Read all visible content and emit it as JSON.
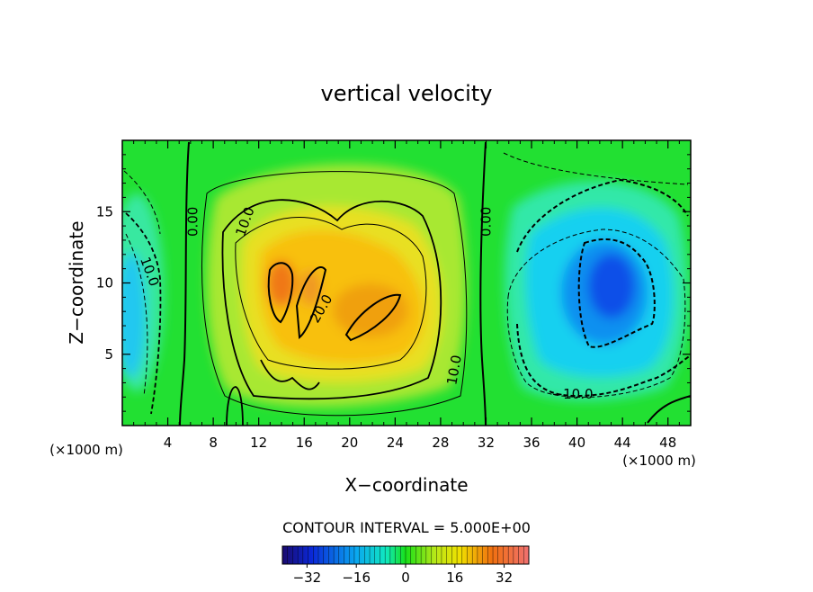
{
  "chart_data": {
    "type": "heatmap",
    "title": "vertical velocity",
    "xlabel": "X−coordinate",
    "ylabel": "Z−coordinate",
    "x_unit_left": "(×1000 m)",
    "x_unit_right": "(×1000 m)",
    "xlim": [
      0,
      50
    ],
    "ylim": [
      0,
      20
    ],
    "x_ticks": [
      4,
      8,
      12,
      16,
      20,
      24,
      28,
      32,
      36,
      40,
      44,
      48
    ],
    "y_ticks": [
      5,
      10,
      15
    ],
    "contour_interval_label": "CONTOUR INTERVAL = 5.000E+00",
    "colorbar": {
      "range": [
        -40,
        40
      ],
      "ticks": [
        -32,
        -16,
        0,
        16,
        32
      ],
      "tick_labels": [
        "−32",
        "−16",
        "0",
        "16",
        "32"
      ]
    },
    "contour_labels": [
      {
        "text": "0.00",
        "x": 6.2,
        "y": 14.3,
        "rotate": -90
      },
      {
        "text": "10.0",
        "x": 10.8,
        "y": 14.3,
        "rotate": -70
      },
      {
        "text": "10.0",
        "x": 2.4,
        "y": 10.8,
        "rotate": 70
      },
      {
        "text": "20.0",
        "x": 17.5,
        "y": 8.2,
        "rotate": -60
      },
      {
        "text": "0.00",
        "x": 32.0,
        "y": 14.3,
        "rotate": -90
      },
      {
        "text": "10.0",
        "x": 29.2,
        "y": 3.9,
        "rotate": -80
      },
      {
        "text": "−10.0",
        "x": 39.6,
        "y": 2.2,
        "rotate": 0
      }
    ],
    "field_features": [
      {
        "x": 23,
        "y": 9,
        "value": 28,
        "name": "updraft core"
      },
      {
        "x": 14,
        "y": 10,
        "value": 33,
        "name": "updraft lobe"
      },
      {
        "x": 43,
        "y": 10,
        "value": -25,
        "name": "downdraft core"
      },
      {
        "x": 1,
        "y": 10,
        "value": -13,
        "name": "left downdraft"
      }
    ]
  }
}
